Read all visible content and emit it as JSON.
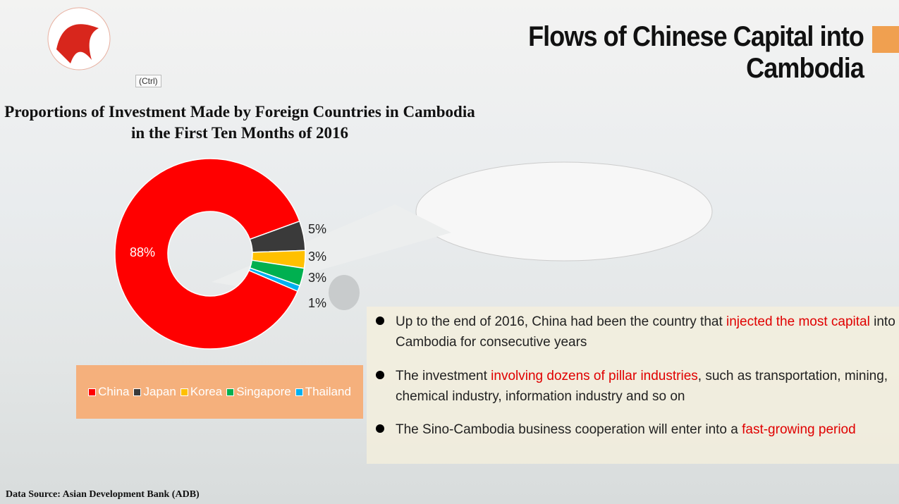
{
  "header": {
    "title": "Flows of Chinese Capital into Cambodia",
    "paste_button": "(Ctrl)"
  },
  "chart_data": {
    "type": "pie",
    "donut": true,
    "title": "Proportions of Investment Made by Foreign Countries in Cambodia in the First Ten Months of 2016",
    "categories": [
      "China",
      "Japan",
      "Korea",
      "Singapore",
      "Thailand"
    ],
    "values": [
      88,
      5,
      3,
      3,
      1
    ],
    "value_labels": [
      "88%",
      "5%",
      "3%",
      "3%",
      "1%"
    ],
    "colors": [
      "#ff0000",
      "#3a3a3a",
      "#ffc000",
      "#00b050",
      "#00b0f0"
    ],
    "legend": "bottom"
  },
  "bullets": [
    [
      "Up to the end of 2016, China had been the country that ",
      "injected the most capital",
      " into Cambodia for consecutive years"
    ],
    [
      " The investment ",
      "involving dozens of pillar industries",
      ", such as transportation, mining, chemical industry, information industry and so on"
    ],
    [
      "The Sino-Cambodia business cooperation will enter into a ",
      "fast-growing period"
    ]
  ],
  "source": "Data Source: Asian Development Bank (ADB)"
}
